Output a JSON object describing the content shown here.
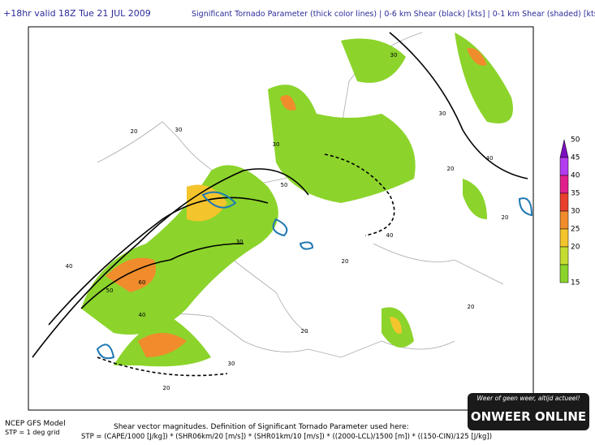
{
  "header": {
    "valid": "+18hr valid 18Z Tue 21 JUL 2009",
    "description": "Significant Tornado Parameter (thick color lines) | 0-6 km Shear (black) [kts] | 0-1 km Shear (shaded) [kts]"
  },
  "legend": [
    {
      "value": 50,
      "color": "#7a10c0"
    },
    {
      "value": 45,
      "color": "#b43cf0"
    },
    {
      "value": 40,
      "color": "#e0208c"
    },
    {
      "value": 35,
      "color": "#e8402c"
    },
    {
      "value": 30,
      "color": "#f08c2c"
    },
    {
      "value": 25,
      "color": "#f4c42c"
    },
    {
      "value": 20,
      "color": "#c4dc30"
    },
    {
      "value": 15,
      "color": "#8cd42c"
    }
  ],
  "contour_labels": [
    "20",
    "30",
    "40",
    "50",
    "60",
    "30",
    "40",
    "20",
    "30",
    "50",
    "40",
    "20",
    "30",
    "20",
    "20",
    "30",
    "40",
    "20",
    "30",
    "20"
  ],
  "footer": {
    "model": "NCEP GFS Model",
    "grid": "STP = 1 deg grid",
    "note": "Shear vector magnitudes. Definition of Significant Tornado Parameter used here:",
    "formula": "STP = (CAPE/1000 [J/kg]) * (SHR06km/20 [m/s]) * (SHR01km/10 [m/s]) * ((2000-LCL)/1500 [m]) * ((150-CIN)/125 [J/kg])"
  },
  "logo": {
    "slogan": "Weer of geen weer, altijd actueel!",
    "name": "ONWEER ONLINE"
  }
}
